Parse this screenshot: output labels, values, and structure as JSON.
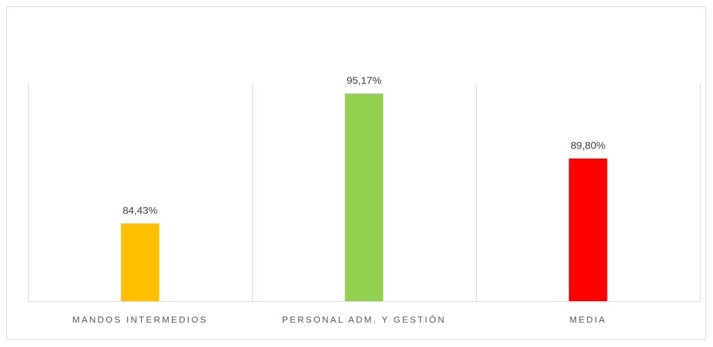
{
  "chart_data": {
    "type": "bar",
    "categories": [
      "MANDOS INTERMEDIOS",
      "PERSONAL ADM. Y GESTIÓN",
      "MEDIA"
    ],
    "values": [
      84.43,
      95.17,
      89.8
    ],
    "value_labels": [
      "84,43%",
      "95,17%",
      "89,80%"
    ],
    "colors": [
      "#ffc000",
      "#92d050",
      "#ff0000"
    ],
    "ylim": [
      78,
      96
    ]
  }
}
